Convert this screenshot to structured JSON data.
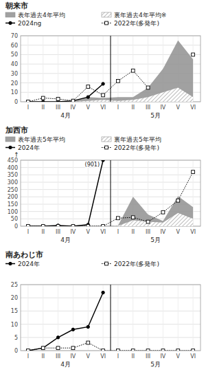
{
  "chart_data": [
    {
      "type": "line",
      "title": "朝来市",
      "categories": [
        "I",
        "II",
        "III",
        "IV",
        "V",
        "VI",
        "I",
        "II",
        "III",
        "IV",
        "V",
        "VI"
      ],
      "month_labels": [
        "4月",
        "5月"
      ],
      "ylim": [
        0,
        70
      ],
      "yticks": [
        0,
        10,
        20,
        30,
        40,
        50,
        60,
        70
      ],
      "grid": true,
      "legend": "top",
      "series": [
        {
          "name": "表年過去4年平均",
          "type": "area",
          "color": "#909090",
          "line_style": "solid",
          "values": [
            0,
            0,
            0,
            1,
            5,
            4,
            5,
            5,
            15,
            35,
            65,
            45
          ]
        },
        {
          "name": "裏年過去4年平均※",
          "type": "area",
          "color": "#909090",
          "line_style": "hatched",
          "values": [
            0,
            0,
            0,
            0,
            1,
            2,
            1,
            2,
            5,
            10,
            15,
            5
          ]
        },
        {
          "name": "2024ng",
          "type": "line",
          "color": "#000000",
          "marker": "circle",
          "line_style": "solid",
          "values": [
            0,
            0,
            0,
            1,
            5,
            19,
            null,
            null,
            null,
            null,
            null,
            null
          ]
        },
        {
          "name": "2022年(多発年)",
          "type": "line",
          "color": "#000000",
          "marker": "square",
          "line_style": "dotted",
          "values": [
            0,
            4,
            3,
            1,
            16,
            7,
            22,
            33,
            15,
            null,
            null,
            50
          ]
        }
      ]
    },
    {
      "type": "line",
      "title": "加西市",
      "categories": [
        "I",
        "II",
        "III",
        "IV",
        "V",
        "VI",
        "I",
        "II",
        "III",
        "IV",
        "V",
        "VI"
      ],
      "month_labels": [
        "4月",
        "5月"
      ],
      "annotations": [
        "↑",
        "(901)"
      ],
      "ylim": [
        0,
        450
      ],
      "yticks": [
        0,
        50,
        100,
        150,
        200,
        250,
        300,
        350,
        400,
        450
      ],
      "grid": true,
      "legend": "top",
      "series": [
        {
          "name": "表年過去5年平均",
          "type": "area",
          "color": "#909090",
          "line_style": "solid",
          "values": [
            0,
            0,
            0,
            0,
            0,
            5,
            5,
            200,
            80,
            35,
            205,
            130
          ]
        },
        {
          "name": "裏年過去5年平均",
          "type": "area",
          "color": "#909090",
          "line_style": "hatched",
          "values": [
            0,
            0,
            0,
            0,
            0,
            1,
            2,
            40,
            30,
            25,
            90,
            50
          ]
        },
        {
          "name": "2024年",
          "type": "line",
          "color": "#000000",
          "marker": "circle",
          "line_style": "solid",
          "values": [
            0,
            0,
            5,
            0,
            10,
            450,
            null,
            null,
            null,
            null,
            null,
            null
          ]
        },
        {
          "name": "2022年(多発年)",
          "type": "line",
          "color": "#000000",
          "marker": "square",
          "line_style": "dotted",
          "values": [
            0,
            0,
            0,
            0,
            0,
            0,
            55,
            60,
            30,
            95,
            175,
            370
          ]
        }
      ]
    },
    {
      "type": "line",
      "title": "南あわじ市",
      "categories": [
        "I",
        "II",
        "III",
        "IV",
        "V",
        "VI",
        "I",
        "II",
        "III",
        "IV",
        "V",
        "VI"
      ],
      "month_labels": [
        "4月",
        "5月"
      ],
      "ylim": [
        0,
        25
      ],
      "yticks": [
        0,
        5,
        10,
        15,
        20,
        25
      ],
      "grid": true,
      "legend": "top",
      "series": [
        {
          "name": "2024年",
          "type": "line",
          "color": "#000000",
          "marker": "circle",
          "line_style": "solid",
          "values": [
            0,
            1,
            5,
            8,
            9,
            22,
            null,
            null,
            null,
            null,
            null,
            null
          ]
        },
        {
          "name": "2022年(多発年)",
          "type": "line",
          "color": "#000000",
          "marker": "square",
          "line_style": "dotted",
          "values": [
            0,
            1,
            1,
            1,
            3,
            0,
            0,
            0,
            0,
            0,
            0,
            0
          ]
        }
      ]
    }
  ]
}
